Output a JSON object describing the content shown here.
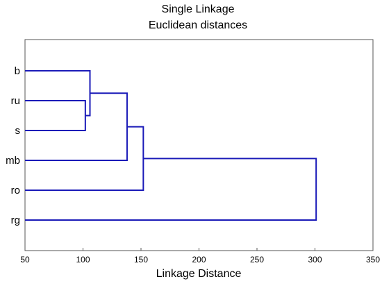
{
  "chart_data": {
    "type": "dendrogram",
    "title": "Single Linkage",
    "subtitle": "Euclidean distances",
    "xlabel": "Linkage Distance",
    "xlim": [
      50,
      350
    ],
    "xticks": [
      50,
      100,
      150,
      200,
      250,
      300,
      350
    ],
    "orientation": "horizontal",
    "line_color": "#1a1ab8",
    "leaves": [
      "b",
      "ru",
      "s",
      "mb",
      "ro",
      "rg"
    ],
    "merges": [
      {
        "a": "ru",
        "b": "s",
        "height": 102
      },
      {
        "a": "b",
        "b": "ru+s",
        "height": 106
      },
      {
        "a": "b+ru+s",
        "b": "mb",
        "height": 138
      },
      {
        "a": "b+ru+s+mb",
        "b": "ro",
        "height": 152
      },
      {
        "a": "b+ru+s+mb+ro",
        "b": "rg",
        "height": 301
      }
    ]
  }
}
